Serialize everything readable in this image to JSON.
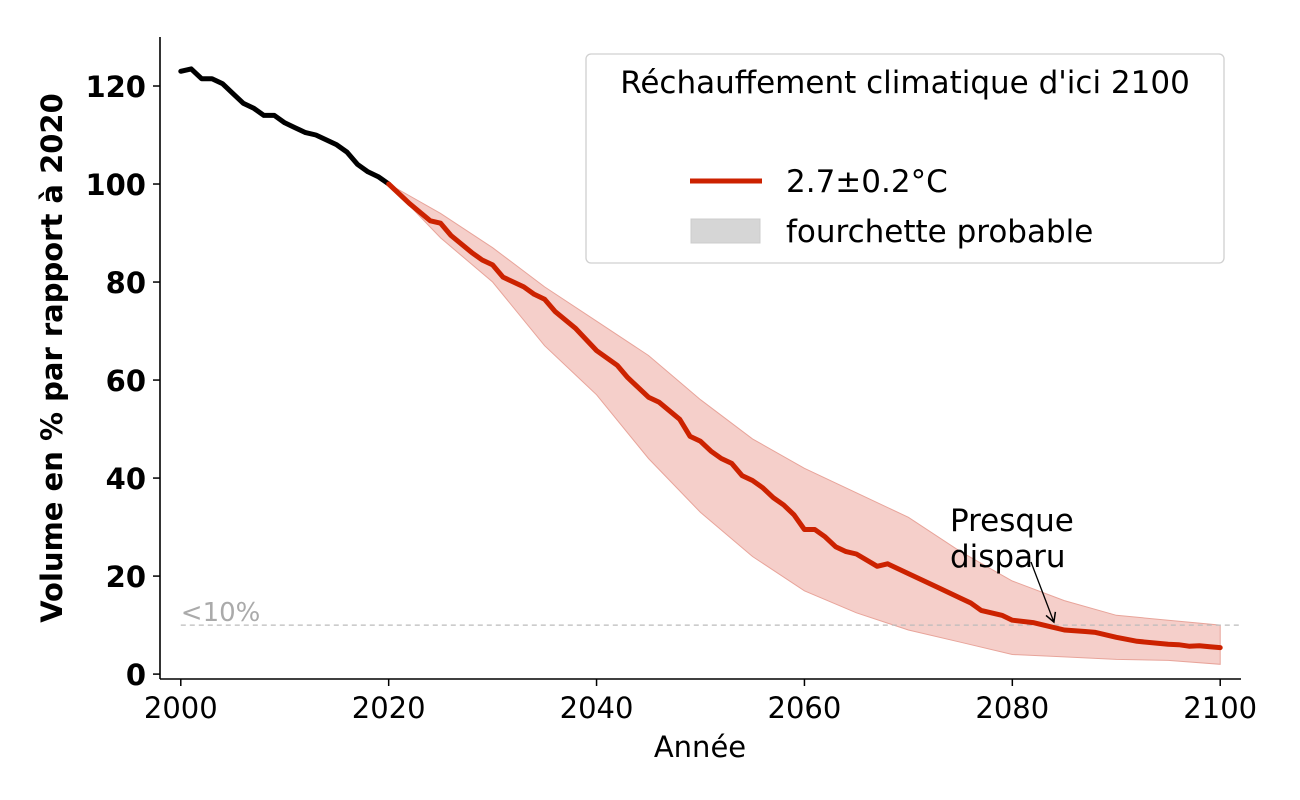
{
  "chart_data": {
    "type": "line",
    "title": "",
    "xlabel": "Année",
    "ylabel": "Volume en % par rapport à 2020",
    "xlim": [
      1998,
      2102
    ],
    "ylim": [
      -1,
      130
    ],
    "xticks": [
      2000,
      2020,
      2040,
      2060,
      2080,
      2100
    ],
    "yticks": [
      0,
      20,
      40,
      60,
      80,
      100,
      120
    ],
    "grid": false,
    "colors": {
      "historical": "#000000",
      "projection": "#cc2200",
      "range_fill": "#f5cfca",
      "range_edge": "#e8a49a",
      "threshold": "#bbbbbb",
      "threshold_label": "#aaaaaa"
    },
    "historical": {
      "x": [
        2000,
        2001,
        2002,
        2003,
        2004,
        2005,
        2006,
        2007,
        2008,
        2009,
        2010,
        2011,
        2012,
        2013,
        2014,
        2015,
        2016,
        2017,
        2018,
        2019,
        2020
      ],
      "y": [
        123,
        123.5,
        121.5,
        121.5,
        120.5,
        118.5,
        116.5,
        115.5,
        114,
        114,
        112.5,
        111.5,
        110.5,
        110,
        109,
        108,
        106.5,
        104,
        102.5,
        101.5,
        100
      ]
    },
    "series": [
      {
        "name": "2.7±0.2°C",
        "x": [
          2020,
          2022,
          2024,
          2025,
          2026,
          2028,
          2029,
          2030,
          2031,
          2033,
          2034,
          2035,
          2036,
          2038,
          2040,
          2042,
          2043,
          2045,
          2046,
          2048,
          2049,
          2050,
          2051,
          2052,
          2053,
          2054,
          2055,
          2056,
          2057,
          2058,
          2059,
          2060,
          2061,
          2062,
          2063,
          2064,
          2065,
          2067,
          2068,
          2070,
          2071,
          2072,
          2073,
          2075,
          2076,
          2077,
          2079,
          2080,
          2082,
          2083,
          2085,
          2087,
          2088,
          2090,
          2092,
          2095,
          2096,
          2097,
          2098,
          2099,
          2100
        ],
        "y": [
          100,
          96,
          92.5,
          92,
          89.5,
          86,
          84.5,
          83.5,
          81,
          79,
          77.5,
          76.5,
          74,
          70.5,
          66,
          63,
          60.5,
          56.5,
          55.5,
          52,
          48.5,
          47.5,
          45.5,
          44,
          43,
          40.5,
          39.5,
          38,
          36,
          34.5,
          32.5,
          29.5,
          29.5,
          28,
          26,
          25,
          24.5,
          22,
          22.5,
          20.5,
          19.5,
          18.5,
          17.5,
          15.5,
          14.5,
          13,
          12,
          11,
          10.5,
          10,
          9,
          8.7,
          8.5,
          7.5,
          6.7,
          6.1,
          6,
          5.7,
          5.8,
          5.6,
          5.4
        ]
      }
    ],
    "range": {
      "name": "fourchette probable",
      "x": [
        2020,
        2025,
        2030,
        2035,
        2040,
        2045,
        2050,
        2055,
        2060,
        2065,
        2070,
        2075,
        2080,
        2085,
        2090,
        2095,
        2100
      ],
      "lower": [
        100,
        89,
        80,
        67,
        57,
        44,
        33,
        24,
        17,
        12.5,
        9,
        6.5,
        4,
        3.5,
        3,
        2.8,
        2
      ],
      "upper": [
        100,
        94,
        87,
        79,
        72,
        65,
        56,
        48,
        42,
        37,
        32,
        25,
        19,
        15,
        12,
        11,
        10
      ]
    },
    "threshold": {
      "y": 10,
      "label": "<10%"
    },
    "annotation": {
      "text_lines": [
        "Presque",
        "disparu"
      ],
      "text_pos": [
        2074,
        30
      ],
      "point": [
        2084,
        10
      ]
    },
    "legend": {
      "title": "Réchauffement climatique d'ici 2100",
      "placement": "top-right",
      "entries": [
        "2.7±0.2°C",
        "fourchette probable"
      ]
    }
  }
}
